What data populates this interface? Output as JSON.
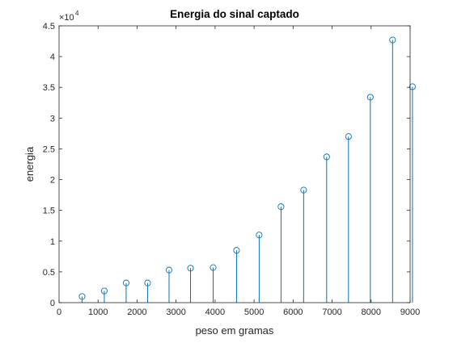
{
  "chart_data": {
    "type": "stem",
    "title": "Energia do sinal captado",
    "xlabel": "peso em gramas",
    "ylabel": "energia",
    "xlim": [
      0,
      9000
    ],
    "ylim": [
      0,
      4.5
    ],
    "y_multiplier": {
      "base": "×10",
      "exponent": "4"
    },
    "xticks": [
      0,
      1000,
      2000,
      3000,
      4000,
      5000,
      6000,
      7000,
      8000,
      9000
    ],
    "xtick_labels": [
      "0",
      "1000",
      "2000",
      "3000",
      "4000",
      "5000",
      "6000",
      "7000",
      "8000",
      "9000"
    ],
    "yticks": [
      0,
      0.5,
      1,
      1.5,
      2,
      2.5,
      3,
      3.5,
      4,
      4.5
    ],
    "ytick_labels": [
      "0",
      "0.5",
      "1",
      "1.5",
      "2",
      "2.5",
      "3",
      "3.5",
      "4",
      "4.5"
    ],
    "grid": false,
    "box": true,
    "series_color": "#0072BD",
    "x": [
      590,
      1160,
      1720,
      2270,
      2820,
      3370,
      3950,
      4550,
      5130,
      5690,
      6270,
      6860,
      7420,
      7980,
      8550,
      9060
    ],
    "y": [
      0.1,
      0.19,
      0.32,
      0.32,
      0.53,
      0.56,
      0.57,
      0.85,
      1.1,
      1.56,
      1.83,
      2.37,
      2.7,
      3.34,
      4.27,
      3.51
    ]
  }
}
